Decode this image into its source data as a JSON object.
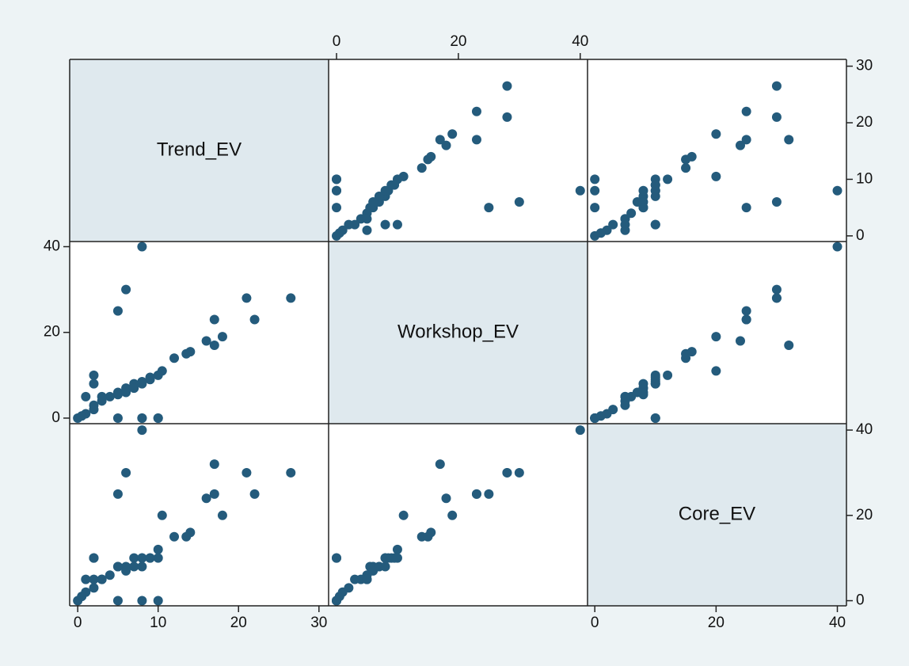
{
  "chart_data": {
    "type": "scatter_matrix",
    "color": "#245b7c",
    "variables": [
      {
        "name": "Trend_EV",
        "lim": [
          -1,
          31.2
        ],
        "ticks": [
          0,
          10,
          20,
          30
        ],
        "values": [
          8,
          26.5,
          21,
          22,
          17,
          16,
          6,
          5,
          17,
          18,
          14,
          12,
          10.5,
          13.5,
          10,
          9,
          8,
          7,
          6,
          5,
          5,
          4,
          3,
          2,
          2,
          1,
          0,
          0.5,
          10,
          8,
          5,
          10,
          8,
          2,
          2,
          1,
          3,
          7,
          8,
          6,
          9
        ]
      },
      {
        "name": "Workshop_EV",
        "lim": [
          -1.3,
          41.2
        ],
        "ticks": [
          0,
          20,
          40
        ],
        "values": [
          40,
          28,
          28,
          23,
          23,
          18,
          30,
          25,
          17,
          19,
          15.5,
          14,
          11,
          15,
          10,
          9,
          8.5,
          8,
          7,
          6,
          5.5,
          5,
          4,
          3,
          2,
          1,
          0,
          0.5,
          0,
          0,
          0,
          0,
          0,
          10,
          8,
          5,
          5,
          7,
          8,
          6,
          9.5
        ]
      },
      {
        "name": "Core_EV",
        "lim": [
          -1.2,
          41.5
        ],
        "ticks": [
          0,
          20,
          40
        ],
        "values": [
          40,
          30,
          30,
          25,
          25,
          24,
          30,
          25,
          32,
          20,
          16,
          15,
          20,
          15,
          12,
          10,
          10,
          10,
          8,
          8,
          8,
          6,
          5,
          5,
          3,
          2,
          0,
          1,
          10,
          10,
          0,
          0,
          0,
          10,
          10,
          5,
          5,
          8,
          8,
          7,
          10
        ]
      }
    ]
  }
}
